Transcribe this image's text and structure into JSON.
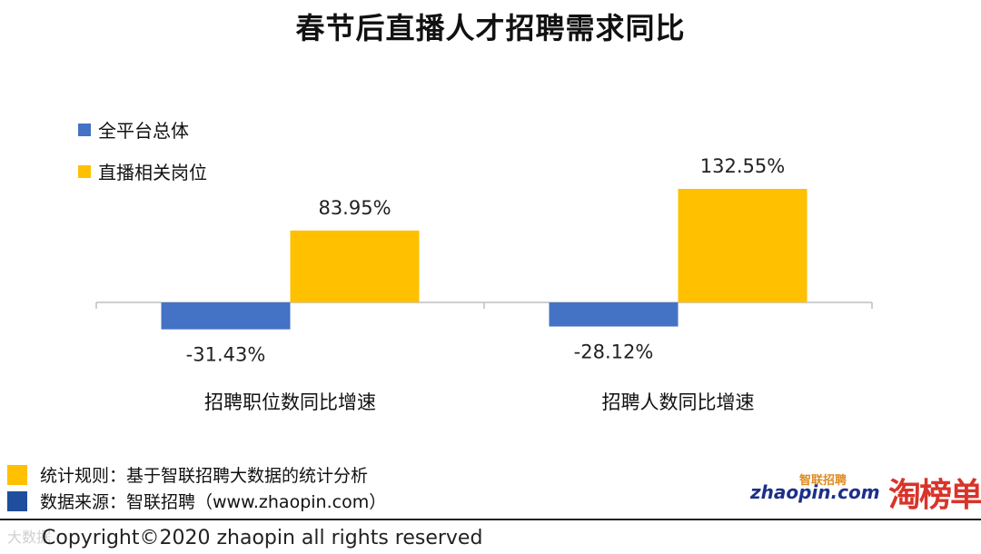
{
  "title": "春节后直播人才招聘需求同比",
  "chart_data": {
    "type": "bar",
    "categories": [
      "招聘职位数同比增速",
      "招聘人数同比增速"
    ],
    "series": [
      {
        "name": "全平台总体",
        "values": [
          -31.43,
          -28.12
        ],
        "labels": [
          "-31.43%",
          "-28.12%"
        ]
      },
      {
        "name": "直播相关岗位",
        "values": [
          83.95,
          132.55
        ],
        "labels": [
          "83.95%",
          "132.55%"
        ]
      }
    ],
    "unit": "%",
    "ylim": [
      -40,
      140
    ],
    "grid": false,
    "legend_position": "top-left",
    "colors": [
      "#4472C4",
      "#FFC000"
    ]
  },
  "legend": {
    "items": [
      {
        "label": "全平台总体",
        "color": "#4472C4"
      },
      {
        "label": "直播相关岗位",
        "color": "#FFC000"
      }
    ]
  },
  "notes": {
    "rule": "统计规则：基于智联招聘大数据的统计分析",
    "source": "数据来源：智联招聘（www.zhaopin.com）",
    "rule_color": "#FFC000",
    "source_color": "#1F4E9C"
  },
  "logos": {
    "zhaopin_text": "zhaopin.com",
    "zhaopin_cn": "智联招聘",
    "taobang": "淘榜单"
  },
  "watermark": "大数据",
  "copyright": "Copyright©2020 zhaopin all rights reserved"
}
